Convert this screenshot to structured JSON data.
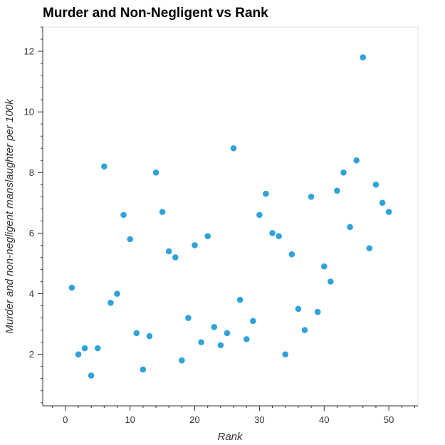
{
  "chart_data": {
    "type": "scatter",
    "title": "Murder and Non-Negligent vs Rank",
    "xlabel": "Rank",
    "ylabel": "Murder and non-negligent  manslaughter per 100k",
    "xlim": [
      -3.5,
      54.5
    ],
    "ylim": [
      0.3,
      12.8
    ],
    "xticks": [
      0,
      10,
      20,
      30,
      40,
      50
    ],
    "xtick_labels": [
      "0",
      "10",
      "20",
      "30",
      "40",
      "50"
    ],
    "yticks": [
      2,
      4,
      6,
      8,
      10,
      12
    ],
    "ytick_labels": [
      "2",
      "4",
      "6",
      "8",
      "10",
      "12"
    ],
    "grid": false,
    "marker_color": "#30a2da",
    "series": [
      {
        "x": [
          1,
          2,
          3,
          4,
          5,
          6,
          7,
          8,
          9,
          10,
          11,
          12,
          13,
          14,
          15,
          16,
          17,
          18,
          19,
          20,
          21,
          22,
          23,
          24,
          25,
          26,
          27,
          28,
          29,
          30,
          31,
          32,
          33,
          34,
          35,
          36,
          37,
          38,
          39,
          40,
          41,
          42,
          43,
          44,
          45,
          46,
          47,
          48,
          49,
          50
        ],
        "y": [
          4.2,
          2.0,
          2.2,
          1.3,
          2.2,
          8.2,
          3.7,
          4.0,
          6.6,
          5.8,
          2.7,
          1.5,
          2.6,
          8.0,
          6.7,
          5.4,
          5.2,
          1.8,
          3.2,
          5.6,
          2.4,
          5.9,
          2.9,
          2.3,
          2.7,
          8.8,
          3.8,
          2.5,
          3.1,
          6.6,
          7.3,
          6.0,
          5.9,
          2.0,
          5.3,
          3.5,
          2.8,
          7.2,
          3.4,
          4.9,
          4.4,
          7.4,
          8.0,
          6.2,
          8.4,
          11.8,
          5.5,
          7.6,
          7.0,
          6.7
        ]
      }
    ]
  }
}
